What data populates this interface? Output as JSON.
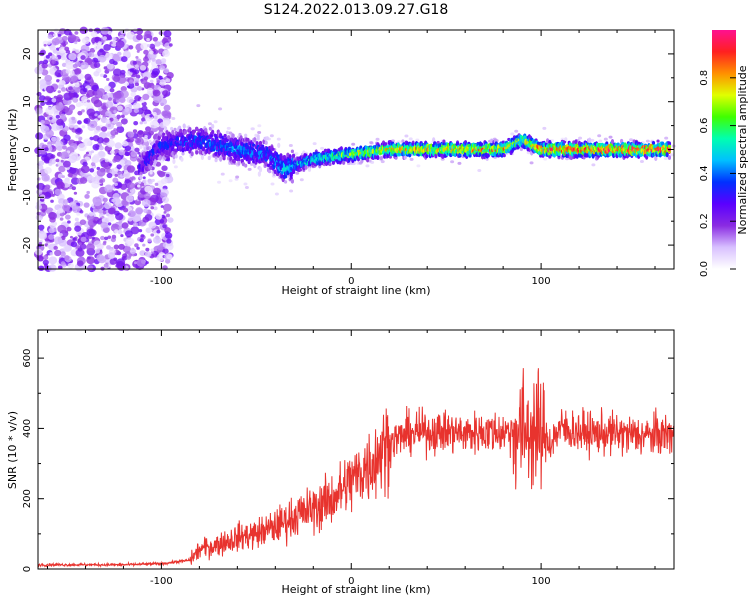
{
  "title": "S124.2022.013.09.27.G18",
  "colorbar": {
    "label": "Normalized spectral amplitude",
    "ticks": [
      "0.0",
      "0.2",
      "0.4",
      "0.6",
      "0.8"
    ],
    "tick_values": [
      0,
      0.2,
      0.4,
      0.6,
      0.8
    ],
    "range": [
      0,
      1
    ],
    "colors": [
      "#ffffff",
      "#d8c0ff",
      "#8a2be2",
      "#5a00ff",
      "#0030ff",
      "#00c0ff",
      "#00ffb0",
      "#40ff00",
      "#e0ff00",
      "#ff9000",
      "#ff2020",
      "#ff1090"
    ]
  },
  "chart_data": [
    {
      "type": "heatmap",
      "title": "S124.2022.013.09.27.G18",
      "xlabel": "Height of straight line (km)",
      "ylabel": "Frequency (Hz)",
      "xlim": [
        -165,
        170
      ],
      "ylim": [
        -25,
        25
      ],
      "x_ticks": [
        -100,
        0,
        100
      ],
      "x_tick_labels": [
        "-100",
        "0",
        "100"
      ],
      "y_ticks": [
        -20,
        -10,
        0,
        10,
        20
      ],
      "y_tick_labels": [
        "-20",
        "-10",
        "0",
        "10",
        "20"
      ],
      "ridge": {
        "x": [
          -112,
          -100,
          -80,
          -60,
          -45,
          -35,
          -20,
          0,
          20,
          50,
          80,
          90,
          100,
          130,
          168
        ],
        "frequency": [
          -4,
          1,
          2,
          0,
          -1,
          -4,
          -2,
          -1,
          0,
          0,
          0,
          2,
          0,
          0,
          0
        ],
        "peak_amplitude": [
          0.3,
          0.35,
          0.4,
          0.45,
          0.4,
          0.5,
          0.55,
          0.7,
          0.8,
          0.85,
          0.85,
          0.7,
          0.9,
          0.95,
          0.95
        ]
      }
    },
    {
      "type": "line",
      "xlabel": "Height of straight line (km)",
      "ylabel": "SNR (10 * v/v)",
      "xlim": [
        -165,
        170
      ],
      "ylim": [
        0,
        680
      ],
      "x_ticks": [
        -100,
        0,
        100
      ],
      "x_tick_labels": [
        "-100",
        "0",
        "100"
      ],
      "y_ticks": [
        0,
        200,
        400,
        600
      ],
      "y_tick_labels": [
        "0",
        "200",
        "400",
        "600"
      ],
      "color": "#e8332e",
      "x": [
        -165,
        -140,
        -120,
        -100,
        -85,
        -80,
        -70,
        -60,
        -50,
        -40,
        -30,
        -20,
        -10,
        0,
        10,
        20,
        30,
        40,
        50,
        60,
        70,
        80,
        90,
        95,
        100,
        105,
        110,
        120,
        130,
        140,
        150,
        160,
        170
      ],
      "y": [
        12,
        12,
        12,
        15,
        25,
        55,
        70,
        90,
        100,
        120,
        150,
        170,
        200,
        250,
        300,
        360,
        385,
        390,
        390,
        385,
        390,
        390,
        390,
        400,
        380,
        360,
        400,
        390,
        385,
        385,
        380,
        380,
        385
      ]
    }
  ]
}
